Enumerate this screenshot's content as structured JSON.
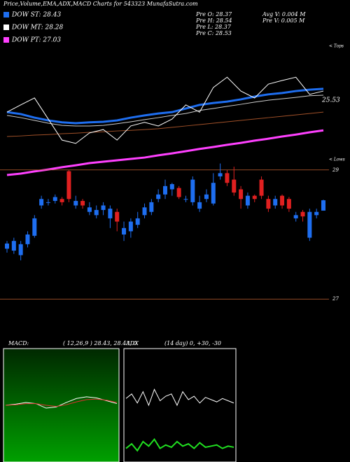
{
  "header": {
    "title": "Price,Volume,EMA,ADX,MACD Charts for 543323 MunafaSutra.com",
    "legend": [
      {
        "label": "DOW ST: 28.43",
        "color": "#1e6ef0"
      },
      {
        "label": "DOW MT: 28.28",
        "color": "#ffffff"
      },
      {
        "label": "DOW PT: 27.03",
        "color": "#ff40ff"
      }
    ],
    "info": [
      "Pre  O: 28.37",
      "Pre  H: 28.54",
      "Pre  L: 28.37",
      "Pre  C: 28.53"
    ],
    "info2": [
      "Avg  V: 0.004  M",
      "Pre  V: 0.005 M"
    ],
    "tops": "< Tops",
    "lows": "< Lows",
    "last": "25.53"
  },
  "chart_data": [
    {
      "type": "line",
      "ylim": [
        24.8,
        29.6
      ],
      "x": [
        1,
        3,
        5,
        7,
        9,
        11,
        13,
        15,
        17,
        19,
        21,
        23,
        25,
        27,
        29,
        31,
        33,
        35,
        37,
        39,
        41,
        43,
        45,
        47
      ],
      "series": [
        {
          "color": "#a05028",
          "width": 1,
          "values": [
            26.19,
            26.21,
            26.24,
            26.26,
            26.29,
            26.31,
            26.34,
            26.36,
            26.39,
            26.41,
            26.44,
            26.47,
            26.52,
            26.57,
            26.62,
            26.67,
            26.72,
            26.77,
            26.82,
            26.87,
            26.92,
            26.97,
            27.02,
            27.07
          ]
        },
        {
          "color": "#ff40ff",
          "width": 3,
          "values": [
            24.8,
            24.85,
            24.93,
            25.0,
            25.08,
            25.15,
            25.23,
            25.28,
            25.33,
            25.38,
            25.43,
            25.51,
            25.58,
            25.66,
            25.74,
            25.81,
            25.89,
            25.96,
            26.04,
            26.11,
            26.19,
            26.26,
            26.34,
            26.41
          ]
        },
        {
          "color": "#cccccc",
          "width": 1,
          "values": [
            26.95,
            26.87,
            26.77,
            26.67,
            26.59,
            26.57,
            26.57,
            26.59,
            26.65,
            26.72,
            26.8,
            26.87,
            26.95,
            27.02,
            27.13,
            27.2,
            27.28,
            27.35,
            27.43,
            27.5,
            27.55,
            27.6,
            27.66,
            27.68
          ]
        },
        {
          "color": "#1e6ef0",
          "width": 3,
          "values": [
            27.07,
            27.0,
            26.87,
            26.77,
            26.7,
            26.67,
            26.7,
            26.72,
            26.77,
            26.87,
            26.95,
            27.02,
            27.07,
            27.2,
            27.33,
            27.4,
            27.45,
            27.53,
            27.63,
            27.71,
            27.76,
            27.83,
            27.88,
            27.91
          ]
        },
        {
          "color": "#ffffff",
          "width": 1,
          "values": [
            27.07,
            27.33,
            27.58,
            26.82,
            26.06,
            25.94,
            26.32,
            26.44,
            26.06,
            26.57,
            26.7,
            26.57,
            26.82,
            27.33,
            27.07,
            27.96,
            28.33,
            27.83,
            27.58,
            28.08,
            28.21,
            28.33,
            27.71,
            27.83
          ]
        }
      ]
    },
    {
      "type": "candlestick",
      "ylim": [
        26.97,
        29.03
      ],
      "yticks": [
        27,
        29
      ],
      "up_color": "#1e6ef0",
      "down_color": "#e02020",
      "open": [
        27.78,
        27.75,
        27.68,
        27.85,
        27.98,
        28.45,
        28.5,
        28.52,
        28.55,
        28.98,
        28.45,
        28.52,
        28.35,
        28.3,
        28.38,
        28.25,
        28.35,
        28.0,
        28.05,
        28.15,
        28.3,
        28.35,
        28.55,
        28.62,
        28.7,
        28.72,
        28.55,
        28.5,
        28.4,
        28.55,
        28.48,
        28.9,
        28.95,
        28.85,
        28.7,
        28.45,
        28.6,
        28.85,
        28.55,
        28.45,
        28.6,
        28.55,
        28.25,
        28.35,
        27.95,
        28.3,
        28.37
      ],
      "close": [
        27.86,
        27.9,
        27.85,
        28.0,
        28.25,
        28.55,
        28.5,
        28.58,
        28.5,
        28.55,
        28.52,
        28.45,
        28.42,
        28.38,
        28.45,
        28.4,
        28.2,
        28.1,
        28.2,
        28.25,
        28.42,
        28.5,
        28.62,
        28.75,
        28.78,
        28.58,
        28.55,
        28.85,
        28.5,
        28.62,
        28.8,
        28.95,
        28.8,
        28.65,
        28.55,
        28.6,
        28.55,
        28.6,
        28.4,
        28.55,
        28.45,
        28.4,
        28.3,
        28.28,
        28.35,
        28.35,
        28.53
      ],
      "high": [
        27.9,
        27.95,
        27.9,
        28.05,
        28.3,
        28.6,
        28.55,
        28.62,
        28.58,
        29.0,
        28.6,
        28.55,
        28.5,
        28.45,
        28.5,
        28.45,
        28.4,
        28.2,
        28.25,
        28.35,
        28.48,
        28.55,
        28.7,
        28.85,
        28.8,
        28.75,
        28.6,
        28.9,
        28.6,
        28.7,
        28.95,
        29.1,
        29.0,
        29.05,
        28.75,
        28.65,
        28.62,
        28.9,
        28.6,
        28.6,
        28.62,
        28.58,
        28.35,
        28.38,
        28.4,
        28.4,
        28.54
      ],
      "low": [
        27.72,
        27.7,
        27.6,
        27.8,
        27.95,
        28.4,
        28.45,
        28.48,
        28.45,
        28.5,
        28.4,
        28.4,
        28.3,
        28.25,
        28.3,
        28.1,
        28.05,
        27.9,
        27.95,
        28.1,
        28.25,
        28.3,
        28.5,
        28.55,
        28.6,
        28.55,
        28.5,
        28.45,
        28.35,
        28.5,
        28.45,
        28.85,
        28.75,
        28.6,
        28.4,
        28.4,
        28.5,
        28.55,
        28.35,
        28.4,
        28.4,
        28.35,
        28.2,
        28.2,
        27.9,
        28.25,
        28.37
      ]
    },
    {
      "type": "line",
      "title": "MACD:",
      "subtitle": "( 12,26,9 ) 28.43, 28.43, 0",
      "ylim": [
        -1,
        1
      ],
      "x": [
        1,
        2,
        3,
        4,
        5,
        6,
        7,
        8,
        9,
        10,
        11,
        12
      ],
      "series": [
        {
          "color": "#ffffff",
          "width": 1,
          "values": [
            0.0,
            0.02,
            0.05,
            0.03,
            -0.05,
            -0.03,
            0.05,
            0.12,
            0.15,
            0.13,
            0.08,
            0.03
          ]
        },
        {
          "color": "#e03030",
          "width": 1,
          "values": [
            0.0,
            0.01,
            0.03,
            0.03,
            0.0,
            -0.02,
            0.01,
            0.06,
            0.1,
            0.11,
            0.09,
            0.05
          ]
        }
      ]
    },
    {
      "type": "line",
      "title": "ADX",
      "subtitle": "(14  day) 0, +30, -30",
      "ylim": [
        0,
        100
      ],
      "x": [
        1,
        2,
        3,
        4,
        5,
        6,
        7,
        8,
        9,
        10,
        11,
        12,
        13,
        14,
        15,
        16,
        17,
        18,
        19,
        20
      ],
      "series": [
        {
          "color": "#ffffff",
          "width": 1,
          "values": [
            56,
            60,
            52,
            62,
            50,
            64,
            54,
            58,
            60,
            50,
            62,
            55,
            58,
            52,
            57,
            55,
            53,
            56,
            54,
            52
          ]
        },
        {
          "color": "#20e020",
          "width": 2,
          "values": [
            12,
            16,
            10,
            18,
            14,
            20,
            12,
            15,
            13,
            18,
            14,
            16,
            12,
            17,
            13,
            14,
            15,
            12,
            14,
            13
          ]
        }
      ]
    }
  ]
}
